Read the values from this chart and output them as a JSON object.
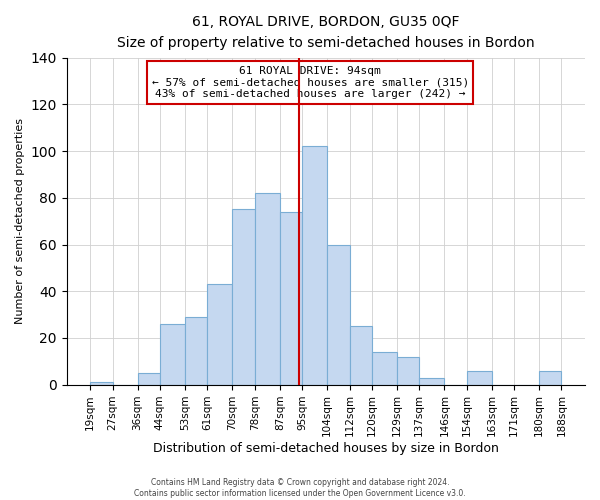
{
  "title": "61, ROYAL DRIVE, BORDON, GU35 0QF",
  "subtitle": "Size of property relative to semi-detached houses in Bordon",
  "xlabel": "Distribution of semi-detached houses by size in Bordon",
  "ylabel": "Number of semi-detached properties",
  "footer_line1": "Contains HM Land Registry data © Crown copyright and database right 2024.",
  "footer_line2": "Contains public sector information licensed under the Open Government Licence v3.0.",
  "bin_labels": [
    "19sqm",
    "27sqm",
    "36sqm",
    "44sqm",
    "53sqm",
    "61sqm",
    "70sqm",
    "78sqm",
    "87sqm",
    "95sqm",
    "104sqm",
    "112sqm",
    "120sqm",
    "129sqm",
    "137sqm",
    "146sqm",
    "154sqm",
    "163sqm",
    "171sqm",
    "180sqm",
    "188sqm"
  ],
  "bar_heights": [
    1,
    0,
    5,
    26,
    29,
    43,
    75,
    82,
    74,
    102,
    60,
    25,
    14,
    12,
    3,
    0,
    6,
    0,
    0,
    6
  ],
  "bin_edges": [
    19,
    27,
    36,
    44,
    53,
    61,
    70,
    78,
    87,
    95,
    104,
    112,
    120,
    129,
    137,
    146,
    154,
    163,
    171,
    180,
    188
  ],
  "bar_color": "#c5d8f0",
  "bar_edgecolor": "#7aadd4",
  "property_line_x": 94,
  "property_line_color": "#cc0000",
  "annotation_title": "61 ROYAL DRIVE: 94sqm",
  "annotation_line1": "← 57% of semi-detached houses are smaller (315)",
  "annotation_line2": "43% of semi-detached houses are larger (242) →",
  "annotation_box_edgecolor": "#cc0000",
  "ylim": [
    0,
    140
  ],
  "yticks": [
    0,
    20,
    40,
    60,
    80,
    100,
    120,
    140
  ]
}
